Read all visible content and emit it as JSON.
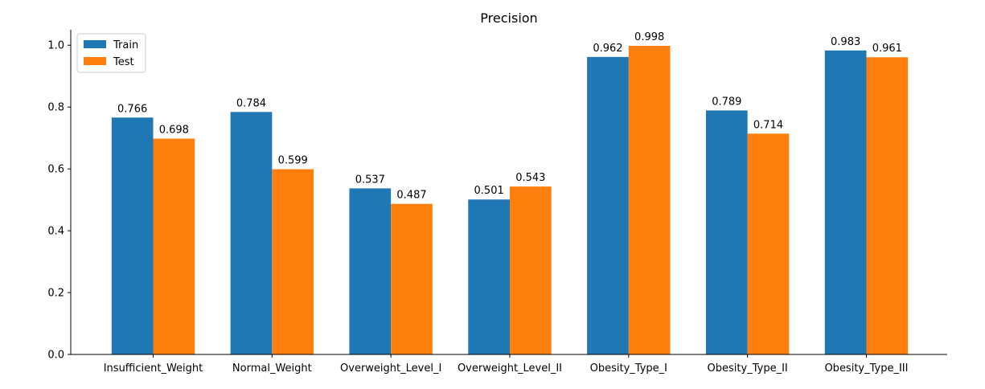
{
  "chart_data": {
    "type": "bar",
    "title": "Precision",
    "xlabel": "",
    "ylabel": "",
    "categories": [
      "Insufficient_Weight",
      "Normal_Weight",
      "Overweight_Level_I",
      "Overweight_Level_II",
      "Obesity_Type_I",
      "Obesity_Type_II",
      "Obesity_Type_III"
    ],
    "series": [
      {
        "name": "Train",
        "color": "#1f77b4",
        "values": [
          0.766,
          0.784,
          0.537,
          0.501,
          0.962,
          0.789,
          0.983
        ],
        "labels": [
          "0.766",
          "0.784",
          "0.537",
          "0.501",
          "0.962",
          "0.789",
          "0.983"
        ]
      },
      {
        "name": "Test",
        "color": "#ff7f0e",
        "values": [
          0.698,
          0.599,
          0.487,
          0.543,
          0.998,
          0.714,
          0.961
        ],
        "labels": [
          "0.698",
          "0.599",
          "0.487",
          "0.543",
          "0.998",
          "0.714",
          "0.961"
        ]
      }
    ],
    "ylim": [
      0,
      1.05
    ],
    "yticks": [
      0.0,
      0.2,
      0.4,
      0.6,
      0.8,
      1.0
    ],
    "ytick_labels": [
      "0.0",
      "0.2",
      "0.4",
      "0.6",
      "0.8",
      "1.0"
    ],
    "grid": false,
    "legend_position": "top-left"
  }
}
